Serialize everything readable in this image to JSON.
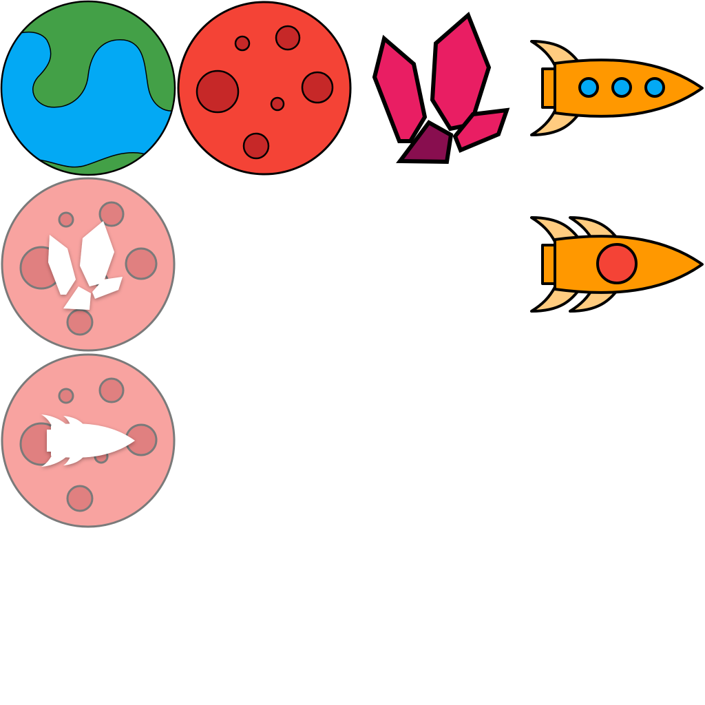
{
  "sprites": [
    {
      "name": "earth-planet",
      "kind": "planet",
      "colors": {
        "ocean": "#03a9f4",
        "land": "#43a047",
        "outline": "#000000"
      }
    },
    {
      "name": "mars-planet",
      "kind": "planet",
      "colors": {
        "surface": "#f44336",
        "crater": "#c62828",
        "outline": "#000000"
      }
    },
    {
      "name": "crystal-cluster",
      "kind": "resource",
      "colors": {
        "crystal": "#e91e63",
        "shadow": "#880e4f",
        "outline": "#000000"
      }
    },
    {
      "name": "rocket-three-windows",
      "kind": "ship",
      "colors": {
        "hull": "#ff9800",
        "fins": "#ffcc80",
        "window": "#03a9f4"
      }
    },
    {
      "name": "rocket-red-window",
      "kind": "ship",
      "colors": {
        "hull": "#ff9800",
        "fins": "#ffcc80",
        "window": "#f44336"
      }
    },
    {
      "name": "crystal-planet-button",
      "kind": "button",
      "colors": {
        "surface": "#f8a3a0",
        "crater": "#e08080",
        "icon": "#ffffff"
      }
    },
    {
      "name": "rocket-planet-button",
      "kind": "button",
      "colors": {
        "surface": "#f8a3a0",
        "crater": "#e08080",
        "icon": "#ffffff"
      }
    }
  ]
}
